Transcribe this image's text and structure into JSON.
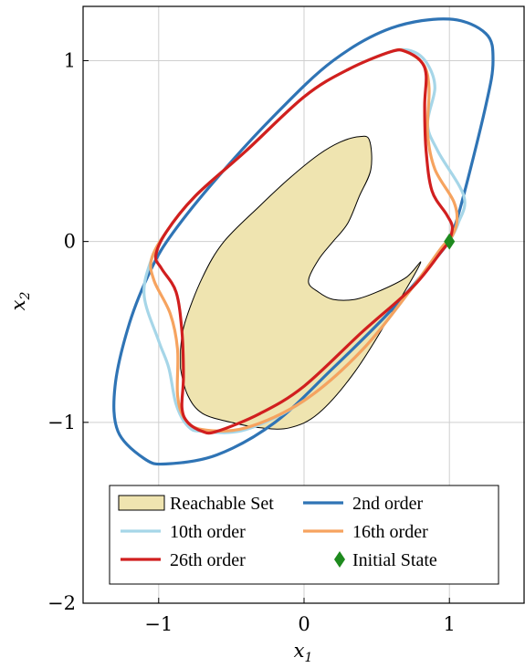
{
  "chart_data": {
    "type": "line",
    "xlabel": "x1",
    "ylabel": "x2",
    "xlim": [
      -1.52,
      1.52
    ],
    "ylim": [
      -2.0,
      1.3
    ],
    "xticks": [
      {
        "v": -1,
        "label": "−1"
      },
      {
        "v": 0,
        "label": "0"
      },
      {
        "v": 1,
        "label": "1"
      }
    ],
    "yticks": [
      {
        "v": -2,
        "label": "−2"
      },
      {
        "v": -1,
        "label": "−1"
      },
      {
        "v": 0,
        "label": "0"
      },
      {
        "v": 1,
        "label": "1"
      }
    ],
    "grid": true,
    "legend_position": "bottom",
    "series": [
      {
        "name": "Reachable Set",
        "kind": "area",
        "color": "#efe4b0",
        "edge": "#000000",
        "points": [
          [
            -0.85,
            -0.6
          ],
          [
            -0.82,
            -0.45
          ],
          [
            -0.7,
            -0.2
          ],
          [
            -0.55,
            0.0
          ],
          [
            -0.3,
            0.2
          ],
          [
            -0.1,
            0.35
          ],
          [
            0.1,
            0.48
          ],
          [
            0.25,
            0.55
          ],
          [
            0.38,
            0.58
          ],
          [
            0.45,
            0.56
          ],
          [
            0.46,
            0.4
          ],
          [
            0.38,
            0.25
          ],
          [
            0.3,
            0.1
          ],
          [
            0.2,
            0.0
          ],
          [
            0.1,
            -0.1
          ],
          [
            0.03,
            -0.22
          ],
          [
            0.1,
            -0.28
          ],
          [
            0.2,
            -0.32
          ],
          [
            0.35,
            -0.32
          ],
          [
            0.5,
            -0.28
          ],
          [
            0.7,
            -0.2
          ],
          [
            0.8,
            -0.12
          ],
          [
            0.6,
            -0.4
          ],
          [
            0.35,
            -0.72
          ],
          [
            0.1,
            -0.95
          ],
          [
            -0.1,
            -1.03
          ],
          [
            -0.3,
            -1.03
          ],
          [
            -0.5,
            -1.0
          ],
          [
            -0.7,
            -0.95
          ],
          [
            -0.8,
            -0.85
          ],
          [
            -0.85,
            -0.7
          ]
        ]
      },
      {
        "name": "2nd order",
        "kind": "line",
        "color": "#2f74b5",
        "points": [
          [
            1,
            0
          ],
          [
            1.08,
            0.2
          ],
          [
            1.25,
            0.75
          ],
          [
            1.3,
            1.0
          ],
          [
            1.25,
            1.15
          ],
          [
            1.0,
            1.23
          ],
          [
            0.6,
            1.18
          ],
          [
            0.2,
            1.0
          ],
          [
            -0.2,
            0.7
          ],
          [
            -0.6,
            0.35
          ],
          [
            -0.9,
            0.05
          ],
          [
            -1.05,
            -0.15
          ],
          [
            -1.2,
            -0.45
          ],
          [
            -1.3,
            -0.8
          ],
          [
            -1.28,
            -1.05
          ],
          [
            -1.1,
            -1.2
          ],
          [
            -0.95,
            -1.23
          ],
          [
            -0.6,
            -1.18
          ],
          [
            -0.2,
            -1.0
          ],
          [
            0.2,
            -0.7
          ],
          [
            0.6,
            -0.38
          ],
          [
            0.9,
            -0.1
          ],
          [
            1,
            0
          ]
        ]
      },
      {
        "name": "10th order",
        "kind": "line",
        "color": "#a6d6e8",
        "points": [
          [
            1,
            0
          ],
          [
            1.06,
            0.1
          ],
          [
            1.1,
            0.25
          ],
          [
            0.92,
            0.5
          ],
          [
            0.85,
            0.65
          ],
          [
            0.9,
            0.85
          ],
          [
            0.85,
            0.98
          ],
          [
            0.75,
            1.05
          ],
          [
            0.6,
            1.05
          ],
          [
            0.3,
            0.95
          ],
          [
            0.0,
            0.8
          ],
          [
            -0.4,
            0.5
          ],
          [
            -0.75,
            0.25
          ],
          [
            -0.95,
            0.05
          ],
          [
            -1.05,
            -0.1
          ],
          [
            -1.1,
            -0.3
          ],
          [
            -1.0,
            -0.55
          ],
          [
            -0.93,
            -0.7
          ],
          [
            -0.88,
            -0.9
          ],
          [
            -0.8,
            -1.02
          ],
          [
            -0.7,
            -1.05
          ],
          [
            -0.4,
            -1.04
          ],
          [
            0.0,
            -0.88
          ],
          [
            0.4,
            -0.6
          ],
          [
            0.75,
            -0.25
          ],
          [
            0.95,
            -0.03
          ],
          [
            1,
            0
          ]
        ]
      },
      {
        "name": "16th order",
        "kind": "line",
        "color": "#f6a35f",
        "points": [
          [
            1,
            0
          ],
          [
            1.05,
            0.1
          ],
          [
            1.03,
            0.22
          ],
          [
            0.9,
            0.4
          ],
          [
            0.85,
            0.6
          ],
          [
            0.86,
            0.85
          ],
          [
            0.82,
            0.98
          ],
          [
            0.7,
            1.05
          ],
          [
            0.6,
            1.05
          ],
          [
            0.3,
            0.95
          ],
          [
            0.0,
            0.8
          ],
          [
            -0.4,
            0.5
          ],
          [
            -0.75,
            0.25
          ],
          [
            -0.95,
            0.05
          ],
          [
            -1.05,
            -0.1
          ],
          [
            -1.03,
            -0.22
          ],
          [
            -0.92,
            -0.4
          ],
          [
            -0.87,
            -0.6
          ],
          [
            -0.87,
            -0.85
          ],
          [
            -0.82,
            -0.98
          ],
          [
            -0.7,
            -1.04
          ],
          [
            -0.4,
            -1.03
          ],
          [
            0.0,
            -0.88
          ],
          [
            0.4,
            -0.6
          ],
          [
            0.75,
            -0.25
          ],
          [
            0.95,
            -0.03
          ],
          [
            1,
            0
          ]
        ]
      },
      {
        "name": "26th order",
        "kind": "line",
        "color": "#d11f1f",
        "points": [
          [
            1,
            0
          ],
          [
            1.02,
            0.08
          ],
          [
            0.98,
            0.15
          ],
          [
            0.88,
            0.28
          ],
          [
            0.84,
            0.5
          ],
          [
            0.83,
            0.75
          ],
          [
            0.84,
            0.92
          ],
          [
            0.8,
            1.0
          ],
          [
            0.7,
            1.05
          ],
          [
            0.6,
            1.05
          ],
          [
            0.3,
            0.95
          ],
          [
            0.0,
            0.8
          ],
          [
            -0.4,
            0.5
          ],
          [
            -0.75,
            0.25
          ],
          [
            -0.95,
            0.05
          ],
          [
            -1.02,
            -0.08
          ],
          [
            -0.98,
            -0.15
          ],
          [
            -0.88,
            -0.28
          ],
          [
            -0.84,
            -0.5
          ],
          [
            -0.83,
            -0.75
          ],
          [
            -0.84,
            -0.92
          ],
          [
            -0.8,
            -1.0
          ],
          [
            -0.7,
            -1.05
          ],
          [
            -0.6,
            -1.05
          ],
          [
            -0.3,
            -0.95
          ],
          [
            0.0,
            -0.8
          ],
          [
            0.4,
            -0.5
          ],
          [
            0.75,
            -0.25
          ],
          [
            0.95,
            -0.05
          ],
          [
            1,
            0
          ]
        ]
      },
      {
        "name": "Initial State",
        "kind": "marker",
        "color": "#1e8a1e",
        "points": [
          [
            1,
            0
          ]
        ]
      }
    ]
  }
}
